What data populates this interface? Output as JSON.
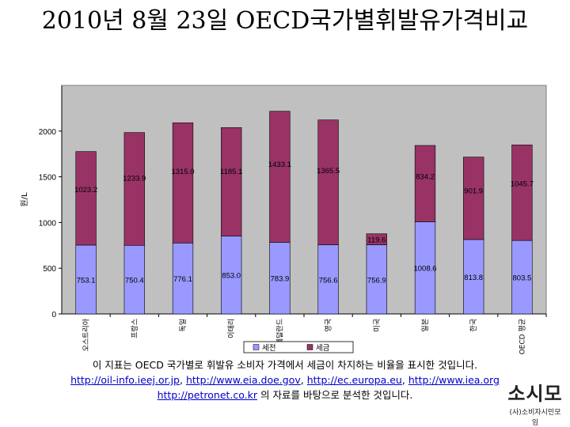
{
  "title": "2010년 8월 23일 OECD국가별휘발유가격비교",
  "caption": {
    "line1": "이 지표는 OECD 국가별로 휘발유 소비자 가격에서 세금이 차지하는 비율을 표시한 것입니다.",
    "links": [
      "http://oil-info.ieej.or.jp",
      "http://www.eia.doe.gov",
      "http://ec.europa.eu",
      "http://www.iea.org",
      "http://petronet.co.kr"
    ],
    "sep": ", ",
    "tail": " 의 자료를 바탕으로 분석한 것입니다."
  },
  "logo": {
    "mark": "소시모",
    "sub": "(사)소비자시민모임"
  },
  "colors": {
    "plot_bg": "#c0c0c0",
    "base": "#9999ff",
    "tax": "#993366"
  },
  "chart_data": {
    "type": "bar",
    "stacked": true,
    "categories": [
      "오스트리아",
      "프랑스",
      "독일",
      "이태리",
      "네덜란드",
      "영국",
      "미국",
      "일본",
      "한국",
      "OECD 평균"
    ],
    "series": [
      {
        "name": "세전",
        "values": [
          753.1,
          750.4,
          776.1,
          853.0,
          783.9,
          756.6,
          756.9,
          1008.6,
          813.8,
          803.5
        ]
      },
      {
        "name": "세금",
        "values": [
          1023.2,
          1233.9,
          1315.0,
          1185.1,
          1433.1,
          1365.5,
          119.6,
          834.2,
          901.9,
          1045.7
        ]
      }
    ],
    "title": "",
    "xlabel": "",
    "ylabel": "원/L",
    "ylim": [
      0,
      2500
    ],
    "yticks": [
      0,
      500,
      1000,
      1500,
      2000
    ],
    "grid": false,
    "legend": "bottom"
  }
}
